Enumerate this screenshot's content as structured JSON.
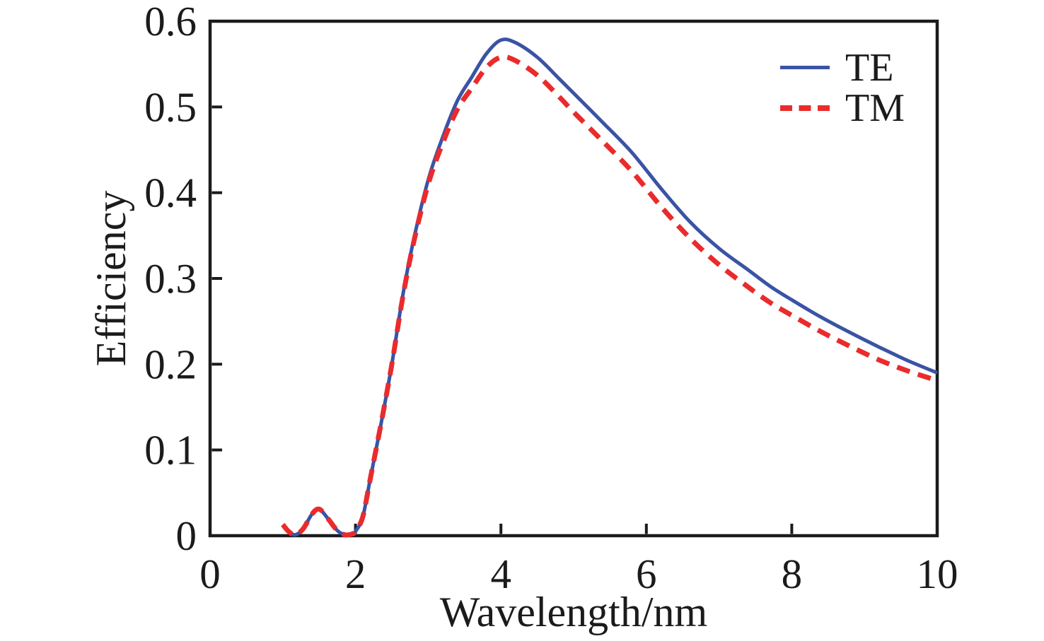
{
  "figure": {
    "background": "#ffffff",
    "text_color": "#1b1b1b",
    "axis_color": "#1b1b1b"
  },
  "chart_data": {
    "type": "line",
    "title": "",
    "xlabel": "Wavelength/nm",
    "ylabel": "Efficiency",
    "xlim": [
      0,
      10
    ],
    "ylim": [
      0,
      0.6
    ],
    "grid": false,
    "legend_position": "top-right",
    "xticks": {
      "values": [
        0,
        2,
        4,
        6,
        8,
        10
      ],
      "labels": [
        "0",
        "2",
        "4",
        "6",
        "8",
        "10"
      ]
    },
    "yticks": {
      "values": [
        0,
        0.1,
        0.2,
        0.3,
        0.4,
        0.5,
        0.6
      ],
      "labels": [
        "0",
        "0.1",
        "0.2",
        "0.3",
        "0.4",
        "0.5",
        "0.6"
      ]
    },
    "series": [
      {
        "name": "TE",
        "color": "#3a53a5",
        "style": "solid",
        "points": [
          [
            1.0,
            0.012
          ],
          [
            1.08,
            0.005
          ],
          [
            1.17,
            0.001
          ],
          [
            1.28,
            0.008
          ],
          [
            1.4,
            0.025
          ],
          [
            1.5,
            0.031
          ],
          [
            1.62,
            0.02
          ],
          [
            1.75,
            0.006
          ],
          [
            1.86,
            0.001
          ],
          [
            1.95,
            0.002
          ],
          [
            2.0,
            0.005
          ],
          [
            2.1,
            0.022
          ],
          [
            2.2,
            0.065
          ],
          [
            2.35,
            0.13
          ],
          [
            2.5,
            0.2
          ],
          [
            2.65,
            0.28
          ],
          [
            2.8,
            0.345
          ],
          [
            3.0,
            0.415
          ],
          [
            3.2,
            0.465
          ],
          [
            3.4,
            0.507
          ],
          [
            3.6,
            0.535
          ],
          [
            3.8,
            0.562
          ],
          [
            4.0,
            0.578
          ],
          [
            4.2,
            0.575
          ],
          [
            4.5,
            0.558
          ],
          [
            4.8,
            0.533
          ],
          [
            5.0,
            0.516
          ],
          [
            5.4,
            0.482
          ],
          [
            5.8,
            0.447
          ],
          [
            6.2,
            0.405
          ],
          [
            6.6,
            0.366
          ],
          [
            7.0,
            0.335
          ],
          [
            7.4,
            0.31
          ],
          [
            7.7,
            0.291
          ],
          [
            8.0,
            0.275
          ],
          [
            8.4,
            0.255
          ],
          [
            8.8,
            0.237
          ],
          [
            9.2,
            0.22
          ],
          [
            9.6,
            0.204
          ],
          [
            10.0,
            0.19
          ]
        ]
      },
      {
        "name": "TM",
        "color": "#ea2b2c",
        "style": "dashed",
        "points": [
          [
            1.0,
            0.013
          ],
          [
            1.08,
            0.005
          ],
          [
            1.17,
            0.001
          ],
          [
            1.28,
            0.008
          ],
          [
            1.4,
            0.025
          ],
          [
            1.5,
            0.031
          ],
          [
            1.62,
            0.02
          ],
          [
            1.75,
            0.006
          ],
          [
            1.86,
            0.001
          ],
          [
            1.95,
            0.002
          ],
          [
            2.0,
            0.005
          ],
          [
            2.1,
            0.022
          ],
          [
            2.2,
            0.065
          ],
          [
            2.35,
            0.13
          ],
          [
            2.5,
            0.2
          ],
          [
            2.65,
            0.278
          ],
          [
            2.8,
            0.342
          ],
          [
            3.0,
            0.41
          ],
          [
            3.2,
            0.458
          ],
          [
            3.4,
            0.497
          ],
          [
            3.6,
            0.522
          ],
          [
            3.8,
            0.546
          ],
          [
            4.0,
            0.558
          ],
          [
            4.2,
            0.554
          ],
          [
            4.5,
            0.537
          ],
          [
            4.8,
            0.512
          ],
          [
            5.0,
            0.494
          ],
          [
            5.4,
            0.46
          ],
          [
            5.8,
            0.425
          ],
          [
            6.2,
            0.384
          ],
          [
            6.6,
            0.347
          ],
          [
            7.0,
            0.316
          ],
          [
            7.4,
            0.29
          ],
          [
            7.7,
            0.272
          ],
          [
            8.0,
            0.257
          ],
          [
            8.4,
            0.238
          ],
          [
            8.8,
            0.221
          ],
          [
            9.2,
            0.205
          ],
          [
            9.6,
            0.192
          ],
          [
            10.0,
            0.181
          ]
        ]
      }
    ]
  }
}
